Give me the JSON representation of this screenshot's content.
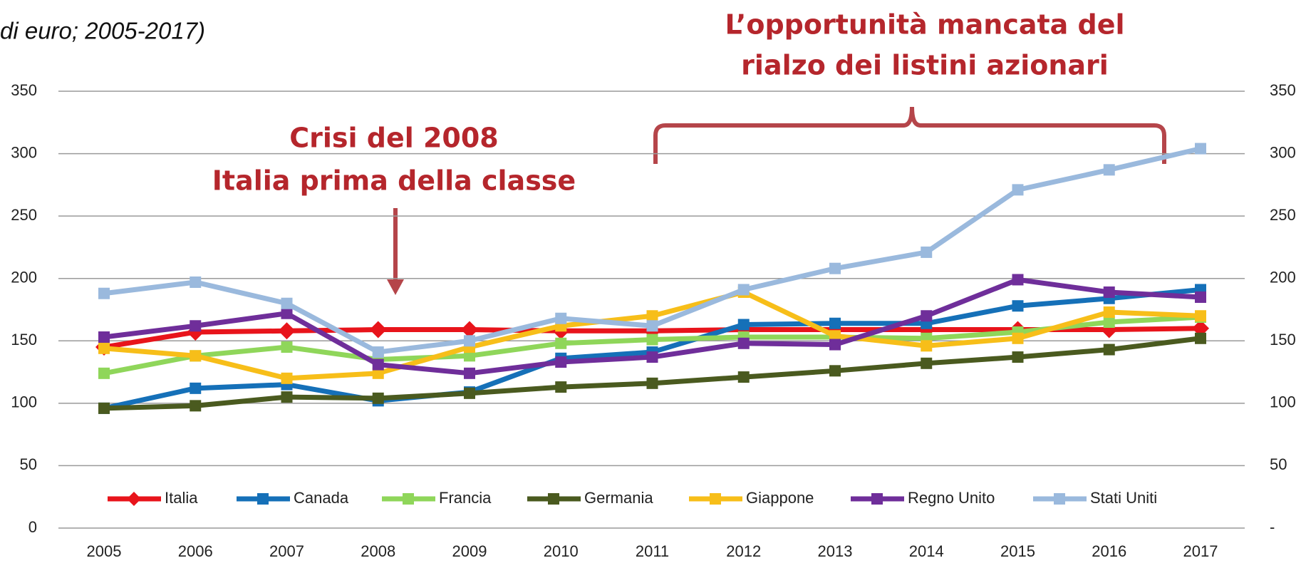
{
  "chart_data": {
    "type": "line",
    "title": "di euro; 2005-2017)",
    "annotations": [
      "L’opportunità mancata del",
      "rialzo dei listini azionari",
      "Crisi del 2008",
      "Italia prima della classe"
    ],
    "categories": [
      "2005",
      "2006",
      "2007",
      "2008",
      "2009",
      "2010",
      "2011",
      "2012",
      "2013",
      "2014",
      "2015",
      "2016",
      "2017"
    ],
    "series": [
      {
        "name": "Italia",
        "color": "#e8141b",
        "marker": "diamond",
        "values": [
          145,
          157,
          158,
          159,
          159,
          158,
          158,
          159,
          159,
          159,
          159,
          159,
          160
        ]
      },
      {
        "name": "Canada",
        "color": "#1570b8",
        "marker": "square",
        "values": [
          96,
          112,
          115,
          102,
          109,
          136,
          141,
          163,
          164,
          164,
          178,
          184,
          191
        ]
      },
      {
        "name": "Francia",
        "color": "#8fd65a",
        "marker": "square",
        "values": [
          124,
          138,
          145,
          135,
          138,
          148,
          151,
          153,
          153,
          152,
          157,
          165,
          169
        ]
      },
      {
        "name": "Germania",
        "color": "#4a5a1f",
        "marker": "square",
        "values": [
          96,
          98,
          105,
          104,
          108,
          113,
          116,
          121,
          126,
          132,
          137,
          143,
          152
        ]
      },
      {
        "name": "Giappone",
        "color": "#f7be19",
        "marker": "square",
        "values": [
          144,
          138,
          120,
          124,
          145,
          162,
          170,
          189,
          154,
          146,
          152,
          173,
          170
        ]
      },
      {
        "name": "Regno Unito",
        "color": "#6f2e9a",
        "marker": "square",
        "values": [
          153,
          162,
          172,
          131,
          124,
          133,
          137,
          148,
          147,
          170,
          199,
          189,
          185
        ]
      },
      {
        "name": "Stati Uniti",
        "color": "#9ab9dd",
        "marker": "square",
        "values": [
          188,
          197,
          180,
          141,
          150,
          168,
          162,
          191,
          208,
          221,
          271,
          287,
          304
        ]
      }
    ],
    "ylim": [
      0,
      350
    ],
    "yticks": [
      0,
      50,
      100,
      150,
      200,
      250,
      300,
      350
    ],
    "y2lim": [
      0,
      350
    ],
    "y2ticks": [
      {
        "value": 0,
        "label": "-"
      },
      50,
      100,
      150,
      200,
      250,
      300,
      350
    ],
    "grid": true
  }
}
